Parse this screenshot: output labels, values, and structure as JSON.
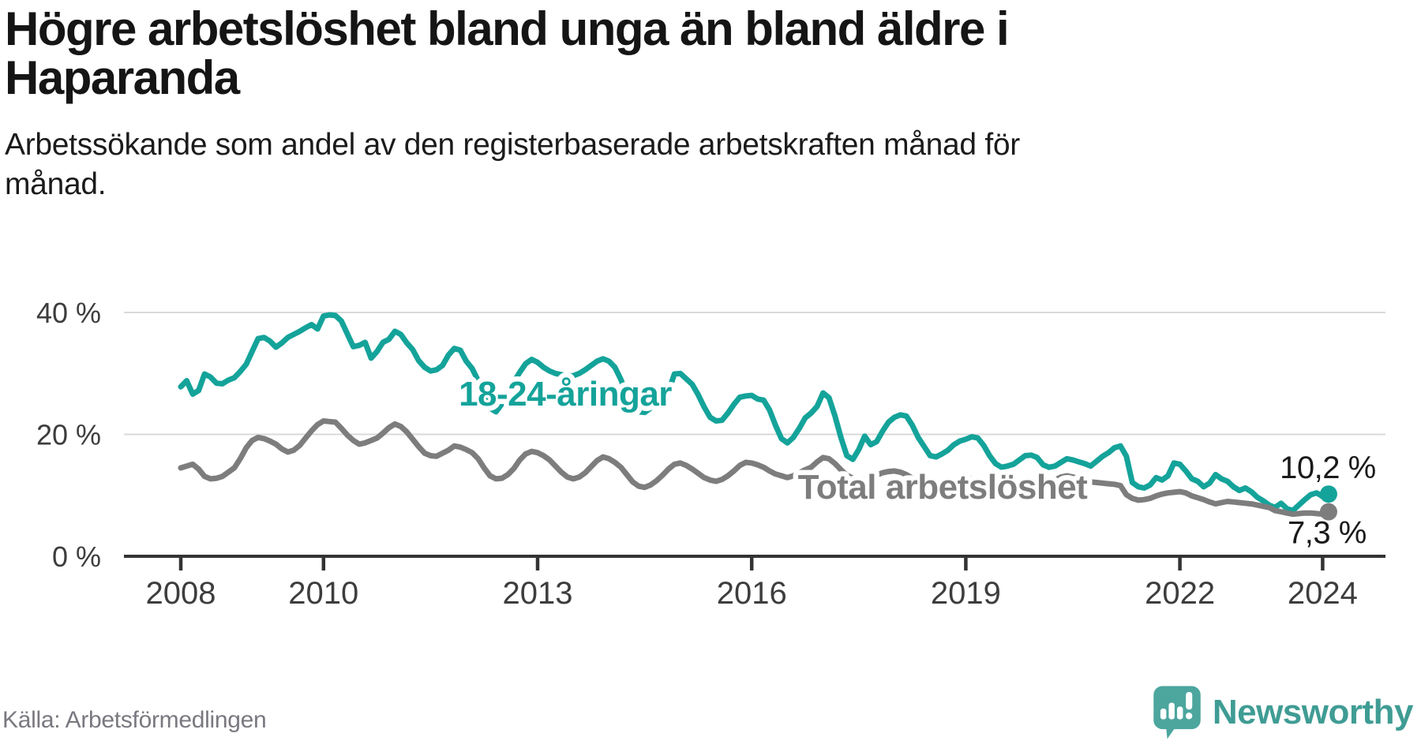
{
  "header": {
    "title_line1": "Högre arbetslöshet bland unga än bland äldre i",
    "title_line2": "Haparanda",
    "subtitle_line1": "Arbetssökande som andel av den registerbaserade arbetskraften månad för",
    "subtitle_line2": "månad."
  },
  "chart_data": {
    "type": "line",
    "title": "Högre arbetslöshet bland unga än bland äldre i Haparanda",
    "subtitle": "Arbetssökande som andel av den registerbaserade arbetskraften månad för månad.",
    "unit": "%",
    "frequency": "monthly",
    "x_start": {
      "year": 2008,
      "month": 1
    },
    "x_end": {
      "year": 2024,
      "month": 2
    },
    "ylim": [
      0,
      42
    ],
    "grid": "horizontal-only",
    "legend_position": "inline-labels",
    "y_ticks": [
      {
        "value": 40,
        "label": "40 %"
      },
      {
        "value": 20,
        "label": "20 %"
      },
      {
        "value": 0,
        "label": "0 %"
      }
    ],
    "x_ticks": [
      {
        "year": 2008,
        "label": "2008"
      },
      {
        "year": 2010,
        "label": "2010"
      },
      {
        "year": 2013,
        "label": "2013"
      },
      {
        "year": 2016,
        "label": "2016"
      },
      {
        "year": 2019,
        "label": "2019"
      },
      {
        "year": 2022,
        "label": "2022"
      },
      {
        "year": 2024,
        "label": "2024"
      }
    ],
    "series": [
      {
        "name": "18-24-åringar",
        "color": "#14a39a",
        "end_label": "10,2 %",
        "end_value": 10.2,
        "values": [
          27.8,
          28.8,
          26.6,
          27.2,
          29.9,
          29.4,
          28.4,
          28.3,
          28.9,
          29.3,
          30.3,
          31.5,
          33.6,
          35.7,
          35.9,
          35.3,
          34.3,
          35.0,
          35.9,
          36.4,
          36.9,
          37.5,
          38.0,
          37.3,
          39.4,
          39.6,
          39.5,
          38.6,
          36.5,
          34.4,
          34.6,
          35.1,
          32.5,
          33.6,
          35.1,
          35.6,
          36.9,
          36.4,
          35.0,
          33.9,
          32.1,
          31.0,
          30.4,
          30.6,
          31.3,
          33.0,
          34.1,
          33.8,
          32.0,
          30.8,
          28.8,
          26.0,
          24.3,
          23.7,
          25.0,
          27.0,
          28.6,
          30.2,
          31.6,
          32.3,
          31.8,
          31.0,
          30.4,
          30.0,
          29.8,
          29.6,
          29.6,
          30.0,
          30.6,
          31.3,
          32.0,
          32.4,
          32.0,
          31.0,
          29.0,
          26.5,
          24.4,
          23.7,
          23.6,
          24.3,
          25.4,
          26.3,
          27.0,
          29.9,
          30.0,
          29.1,
          28.2,
          26.5,
          24.5,
          22.8,
          22.2,
          22.3,
          23.5,
          24.9,
          26.1,
          26.3,
          26.4,
          25.8,
          25.6,
          24.0,
          21.5,
          19.3,
          18.6,
          19.5,
          21.0,
          22.7,
          23.5,
          24.6,
          26.8,
          26.0,
          23.0,
          19.5,
          16.5,
          15.9,
          17.5,
          19.7,
          18.3,
          18.8,
          20.5,
          22.0,
          22.8,
          23.2,
          23.0,
          21.5,
          19.5,
          18.0,
          16.5,
          16.3,
          16.8,
          17.4,
          18.3,
          18.9,
          19.2,
          19.6,
          19.4,
          18.2,
          16.5,
          15.2,
          14.6,
          14.8,
          15.1,
          15.8,
          16.5,
          16.6,
          16.2,
          15.0,
          14.6,
          14.8,
          15.4,
          16.0,
          15.8,
          15.5,
          15.2,
          14.8,
          15.6,
          16.4,
          17.0,
          17.8,
          18.1,
          16.4,
          12.1,
          11.4,
          11.2,
          11.7,
          12.9,
          12.5,
          13.2,
          15.3,
          15.1,
          14.0,
          12.7,
          12.3,
          11.4,
          12.0,
          13.4,
          12.7,
          12.3,
          11.4,
          10.8,
          11.2,
          10.6,
          9.7,
          9.1,
          8.4,
          8.0,
          8.7,
          7.8,
          7.5,
          8.4,
          9.3,
          10.1,
          10.4,
          9.8,
          10.2
        ]
      },
      {
        "name": "Total arbetslöshet",
        "color": "#7d7d7d",
        "end_label": "7,3 %",
        "end_value": 7.3,
        "values": [
          14.5,
          14.8,
          15.1,
          14.3,
          13.1,
          12.7,
          12.8,
          13.1,
          13.8,
          14.5,
          16.0,
          17.8,
          19.0,
          19.5,
          19.3,
          18.9,
          18.4,
          17.6,
          17.1,
          17.4,
          18.2,
          19.4,
          20.6,
          21.6,
          22.2,
          22.1,
          22.0,
          21.0,
          19.9,
          19.0,
          18.4,
          18.6,
          19.0,
          19.4,
          20.2,
          21.1,
          21.7,
          21.3,
          20.4,
          19.2,
          18.0,
          16.9,
          16.5,
          16.4,
          16.9,
          17.4,
          18.1,
          17.9,
          17.5,
          17.0,
          16.0,
          14.5,
          13.2,
          12.7,
          12.8,
          13.4,
          14.4,
          15.8,
          16.8,
          17.2,
          17.0,
          16.5,
          15.8,
          14.8,
          13.8,
          13.0,
          12.7,
          13.0,
          13.7,
          14.7,
          15.7,
          16.3,
          16.0,
          15.4,
          14.6,
          13.4,
          12.2,
          11.5,
          11.3,
          11.7,
          12.4,
          13.3,
          14.3,
          15.1,
          15.3,
          14.9,
          14.3,
          13.6,
          12.9,
          12.5,
          12.3,
          12.6,
          13.2,
          14.0,
          14.9,
          15.4,
          15.3,
          15.0,
          14.6,
          14.0,
          13.5,
          13.2,
          12.9,
          13.2,
          13.7,
          14.2,
          14.6,
          15.5,
          16.2,
          16.0,
          15.2,
          14.2,
          13.3,
          12.8,
          12.5,
          12.7,
          13.0,
          13.3,
          13.7,
          13.9,
          14.0,
          13.8,
          13.4,
          12.8,
          12.2,
          11.7,
          11.5,
          11.7,
          12.0,
          12.3,
          12.6,
          12.7,
          12.8,
          12.7,
          12.4,
          12.0,
          11.7,
          11.4,
          11.3,
          11.4,
          11.6,
          11.9,
          12.2,
          12.3,
          11.9,
          11.6,
          11.9,
          12.5,
          13.0,
          13.2,
          13.0,
          12.7,
          12.4,
          12.2,
          12.1,
          12.0,
          11.9,
          11.8,
          11.6,
          10.1,
          9.5,
          9.2,
          9.3,
          9.5,
          9.9,
          10.2,
          10.4,
          10.5,
          10.6,
          10.4,
          9.9,
          9.6,
          9.3,
          8.9,
          8.6,
          8.8,
          9.0,
          8.9,
          8.8,
          8.7,
          8.6,
          8.4,
          8.2,
          8.0,
          7.5,
          7.3,
          7.1,
          6.9,
          7.0,
          7.1,
          7.1,
          7.0,
          6.9,
          7.3
        ]
      }
    ]
  },
  "footer": {
    "source": "Källa: Arbetsförmedlingen",
    "brand": "Newsworthy"
  }
}
